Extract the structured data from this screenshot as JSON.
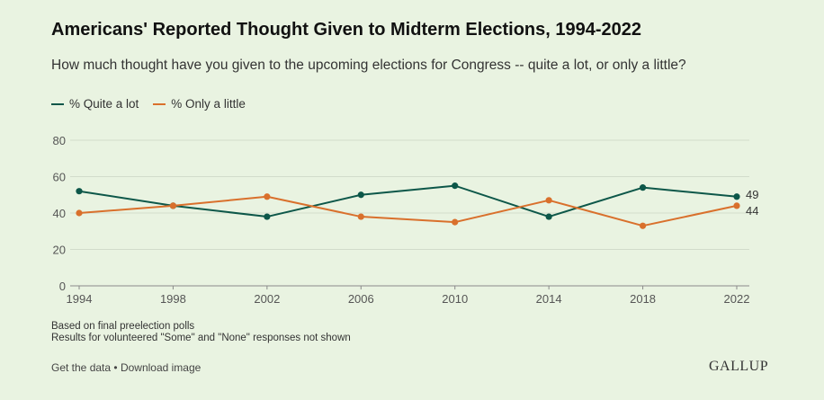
{
  "header": {
    "title": "Americans' Reported Thought Given to Midterm Elections, 1994-2022",
    "subtitle": "How much thought have you given to the upcoming elections for Congress -- quite a lot, or only a little?"
  },
  "notes": [
    "Based on final preelection polls",
    "Results for volunteered \"Some\" and \"None\" responses not shown"
  ],
  "footer": {
    "get_data": "Get the data",
    "separator": "•",
    "download": "Download image",
    "logo": "GALLUP"
  },
  "chart_data": {
    "type": "line",
    "title": "Americans' Reported Thought Given to Midterm Elections, 1994-2022",
    "subtitle": "How much thought have you given to the upcoming elections for Congress -- quite a lot, or only a little?",
    "xlabel": "",
    "ylabel": "",
    "x": [
      "1994",
      "1998",
      "2002",
      "2006",
      "2010",
      "2014",
      "2018",
      "2022"
    ],
    "series": [
      {
        "name": "% Quite a lot",
        "color": "#0d5749",
        "values": [
          52,
          44,
          38,
          50,
          55,
          38,
          54,
          49
        ]
      },
      {
        "name": "% Only a little",
        "color": "#d9702c",
        "values": [
          40,
          44,
          49,
          38,
          35,
          47,
          33,
          44
        ]
      }
    ],
    "ylim": [
      0,
      80
    ],
    "yticks": [
      0,
      20,
      40,
      60,
      80
    ],
    "grid": true,
    "legend": "top-left",
    "end_labels": [
      "49",
      "44"
    ]
  }
}
